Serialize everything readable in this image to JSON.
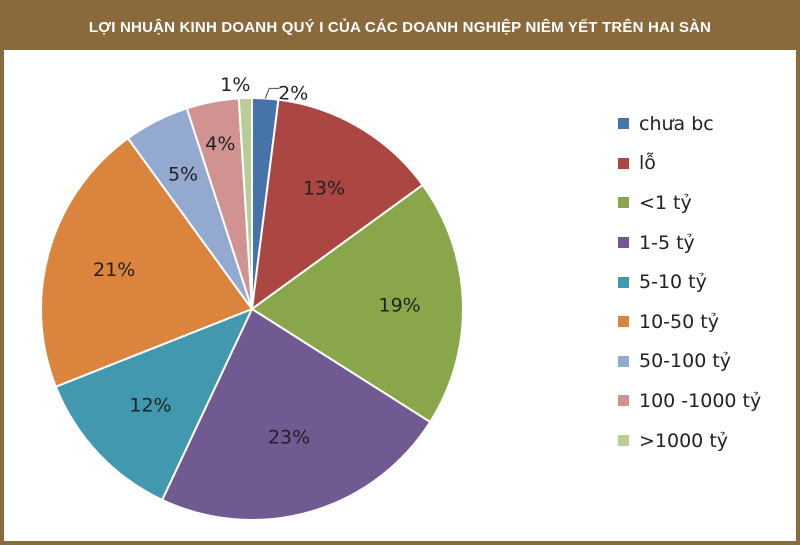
{
  "title": "LỢI NHUẬN KINH DOANH QUÝ I CỦA CÁC DOANH NGHIỆP NIÊM YẾT TRÊN HAI SÀN",
  "colors": {
    "frame": "#8a6a3d",
    "title_text": "#ffffff"
  },
  "chart_data": {
    "type": "pie",
    "title": "LỢI NHUẬN KINH DOANH QUÝ I CỦA CÁC DOANH NGHIỆP NIÊM YẾT TRÊN HAI SÀN",
    "legend_position": "right",
    "start_angle_deg": 0,
    "direction": "clockwise",
    "slices": [
      {
        "label": "chưa bc",
        "value": 2,
        "display": "2%",
        "color": "#4674aa"
      },
      {
        "label": "lỗ",
        "value": 13,
        "display": "13%",
        "color": "#ab4643"
      },
      {
        "label": "<1 tỷ",
        "value": 19,
        "display": "19%",
        "color": "#89a74a"
      },
      {
        "label": "1-5 tỷ",
        "value": 23,
        "display": "23%",
        "color": "#715992"
      },
      {
        "label": "5-10 tỷ",
        "value": 12,
        "display": "12%",
        "color": "#4198af"
      },
      {
        "label": "10-50 tỷ",
        "value": 21,
        "display": "21%",
        "color": "#db843d"
      },
      {
        "label": "50-100 tỷ",
        "value": 5,
        "display": "5%",
        "color": "#93a9cf"
      },
      {
        "label": "100 -1000 tỷ",
        "value": 4,
        "display": "4%",
        "color": "#d19392"
      },
      {
        "label": ">1000 tỷ",
        "value": 1,
        "display": "1%",
        "color": "#b9cd96"
      }
    ]
  }
}
